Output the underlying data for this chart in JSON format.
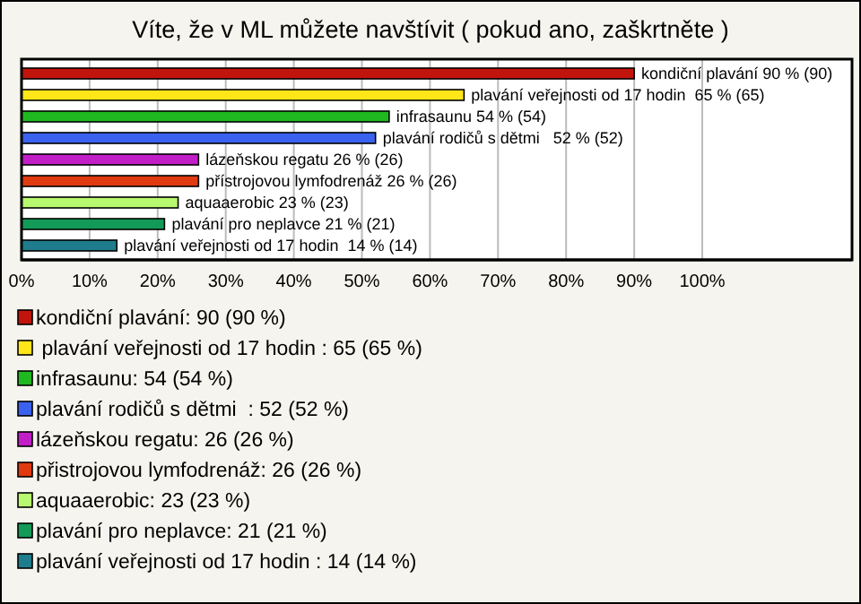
{
  "chart_data": {
    "type": "bar",
    "orientation": "horizontal",
    "stacked": true,
    "title": "Víte, že v ML můžete navštívit ( pokud ano, zaškrtněte )",
    "categories": [
      null,
      null,
      null,
      null,
      null,
      null,
      null,
      null,
      null
    ],
    "series": [
      {
        "name": "kondiční plavání: 90 (90 %)",
        "color": "#c0140c",
        "values": [
          90,
          null,
          null,
          null,
          null,
          null,
          null,
          null,
          null
        ],
        "value_labels": [
          "kondiční plavání 90 % (90)",
          null,
          null,
          null,
          null,
          null,
          null,
          null,
          null
        ]
      },
      {
        "name": " plavání veřejnosti od 17 hodin : 65 (65 %)",
        "color": "#ffe619",
        "values": [
          null,
          65,
          null,
          null,
          null,
          null,
          null,
          null,
          null
        ],
        "value_labels": [
          null,
          "plavání veřejnosti od 17 hodin  65 % (65)",
          null,
          null,
          null,
          null,
          null,
          null,
          null
        ]
      },
      {
        "name": "infrasaunu: 54 (54 %)",
        "color": "#20b820",
        "values": [
          null,
          null,
          54,
          null,
          null,
          null,
          null,
          null,
          null
        ],
        "value_labels": [
          null,
          null,
          "infrasaunu 54 % (54)",
          null,
          null,
          null,
          null,
          null,
          null
        ]
      },
      {
        "name": "plavání rodičů s dětmi  : 52 (52 %)",
        "color": "#3a62ee",
        "values": [
          null,
          null,
          null,
          52,
          null,
          null,
          null,
          null,
          null
        ],
        "value_labels": [
          null,
          null,
          null,
          "plavání rodičů s dětmi   52 % (52)",
          null,
          null,
          null,
          null,
          null
        ]
      },
      {
        "name": "lázeňskou regatu: 26 (26 %)",
        "color": "#c21ec8",
        "values": [
          null,
          null,
          null,
          null,
          26,
          null,
          null,
          null,
          null
        ],
        "value_labels": [
          null,
          null,
          null,
          null,
          "lázeňskou regatu 26 % (26)",
          null,
          null,
          null,
          null
        ]
      },
      {
        "name": "přistrojovou lymfodrenáž: 26 (26 %)",
        "color": "#e03a10",
        "values": [
          null,
          null,
          null,
          null,
          null,
          26,
          null,
          null,
          null
        ],
        "value_labels": [
          null,
          null,
          null,
          null,
          null,
          "přístrojovou lymfodrenáž 26 % (26)",
          null,
          null,
          null
        ]
      },
      {
        "name": "aquaaerobic: 23 (23 %)",
        "color": "#b8f870",
        "values": [
          null,
          null,
          null,
          null,
          null,
          null,
          23,
          null,
          null
        ],
        "value_labels": [
          null,
          null,
          null,
          null,
          null,
          null,
          "aquaaerobic 23 % (23)",
          null,
          null
        ]
      },
      {
        "name": "plavání pro neplavce: 21 (21 %)",
        "color": "#139a58",
        "values": [
          null,
          null,
          null,
          null,
          null,
          null,
          null,
          21,
          null
        ],
        "value_labels": [
          null,
          null,
          null,
          null,
          null,
          null,
          null,
          "plavání pro neplavce 21 % (21)",
          null
        ]
      },
      {
        "name": "plavání veřejnosti od 17 hodin : 14 (14 %)",
        "color": "#1e7c8c",
        "values": [
          null,
          null,
          null,
          null,
          null,
          null,
          null,
          null,
          14
        ],
        "value_labels": [
          null,
          null,
          null,
          null,
          null,
          null,
          null,
          null,
          "plavání veřejnosti od 17 hodin  14 % (14)"
        ]
      }
    ],
    "xlim": [
      0,
      122
    ],
    "xticks": [
      {
        "value": 0,
        "label": "0%"
      },
      {
        "value": 10,
        "label": "10%"
      },
      {
        "value": 20,
        "label": "20%"
      },
      {
        "value": 30,
        "label": "30%"
      },
      {
        "value": 40,
        "label": "40%"
      },
      {
        "value": 50,
        "label": "50%"
      },
      {
        "value": 60,
        "label": "60%"
      },
      {
        "value": 70,
        "label": "70%"
      },
      {
        "value": 80,
        "label": "80%"
      },
      {
        "value": 90,
        "label": "90%"
      },
      {
        "value": 100,
        "label": "100%"
      }
    ],
    "grid": "x",
    "legend": "bottom"
  }
}
